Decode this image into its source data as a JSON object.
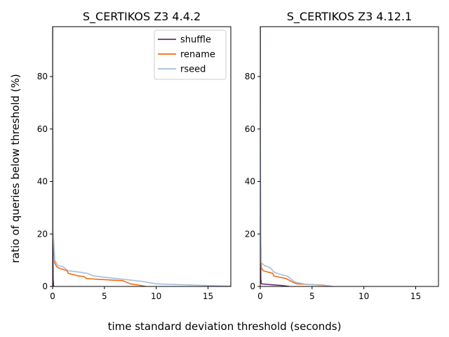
{
  "figure": {
    "xlabel": "time standard deviation threshold (seconds)",
    "ylabel": "ratio of queries below threshold (%)"
  },
  "chart_data": [
    {
      "type": "line",
      "title": "S_CERTIKOS Z3 4.4.2",
      "xlim": [
        0,
        17.2
      ],
      "ylim": [
        0,
        99
      ],
      "xticks": [
        0,
        5,
        10,
        15
      ],
      "yticks": [
        0,
        20,
        40,
        60,
        80
      ],
      "legend": "top-right",
      "series": [
        {
          "name": "shuffle",
          "color": "#6a2c6e",
          "x": [
            0,
            0.02,
            0.05,
            0.1
          ],
          "y": [
            99,
            40,
            3,
            0
          ]
        },
        {
          "name": "rename",
          "color": "#f26b11",
          "x": [
            0,
            0.05,
            0.2,
            0.4,
            0.6,
            1.0,
            1.4,
            1.5,
            2.5,
            3.0,
            3.3,
            4.5,
            6.8,
            7.5,
            8.5,
            9.0
          ],
          "y": [
            99,
            20,
            9,
            7.5,
            7,
            6.5,
            6,
            5,
            4,
            3.8,
            3,
            2.7,
            2.2,
            1,
            0.4,
            0
          ]
        },
        {
          "name": "rseed",
          "color": "#a6bddb",
          "x": [
            0,
            0.05,
            0.2,
            0.5,
            1.0,
            1.5,
            2.5,
            3.3,
            4.0,
            5.5,
            8.5,
            10.0,
            13.0,
            15.5,
            17.2
          ],
          "y": [
            99,
            22,
            10,
            8,
            7.5,
            6,
            5.5,
            5,
            4,
            3.3,
            2,
            1,
            0.6,
            0.3,
            0.1
          ]
        }
      ]
    },
    {
      "type": "line",
      "title": "S_CERTIKOS Z3 4.12.1",
      "xlim": [
        0,
        17.2
      ],
      "ylim": [
        0,
        99
      ],
      "xticks": [
        0,
        5,
        10,
        15
      ],
      "yticks": [
        0,
        20,
        40,
        60,
        80
      ],
      "series": [
        {
          "name": "shuffle",
          "color": "#6a2c6e",
          "x": [
            0,
            0.02,
            0.05,
            0.1,
            1.0,
            2.0,
            2.8
          ],
          "y": [
            99,
            30,
            3,
            1,
            0.7,
            0.4,
            0
          ]
        },
        {
          "name": "rename",
          "color": "#f26b11",
          "x": [
            0,
            0.02,
            0.1,
            0.3,
            0.7,
            1.2,
            1.3,
            2.5,
            3.2,
            3.5,
            4.5,
            6.0,
            7.0
          ],
          "y": [
            99,
            20,
            7,
            6,
            5.5,
            5,
            4,
            3,
            1.5,
            1,
            0.8,
            0.5,
            0
          ]
        },
        {
          "name": "rseed",
          "color": "#a6bddb",
          "x": [
            0,
            0.02,
            0.1,
            0.4,
            1.0,
            1.3,
            2.0,
            2.6,
            3.2,
            3.5,
            4.5,
            6.0,
            7.0
          ],
          "y": [
            99,
            25,
            9,
            8,
            7,
            5.5,
            4.5,
            4,
            2,
            1.5,
            0.8,
            0.4,
            0
          ]
        }
      ]
    }
  ]
}
